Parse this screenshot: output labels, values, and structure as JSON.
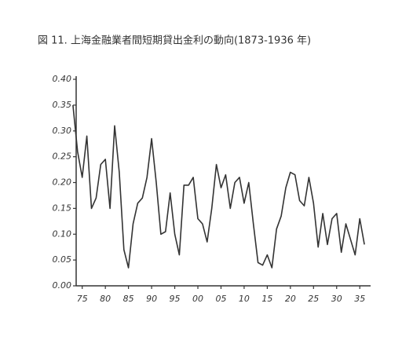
{
  "chart_data": {
    "type": "line",
    "title": "図 11. 上海金融業者間短期貸出金利の動向(1873-1936 年)",
    "x": [
      1873,
      1874,
      1875,
      1876,
      1877,
      1878,
      1879,
      1880,
      1881,
      1882,
      1883,
      1884,
      1885,
      1886,
      1887,
      1888,
      1889,
      1890,
      1891,
      1892,
      1893,
      1894,
      1895,
      1896,
      1897,
      1898,
      1899,
      1900,
      1901,
      1902,
      1903,
      1904,
      1905,
      1906,
      1907,
      1908,
      1909,
      1910,
      1911,
      1912,
      1913,
      1914,
      1915,
      1916,
      1917,
      1918,
      1919,
      1920,
      1921,
      1922,
      1923,
      1924,
      1925,
      1926,
      1927,
      1928,
      1929,
      1930,
      1931,
      1932,
      1933,
      1934,
      1935,
      1936
    ],
    "values": [
      0.35,
      0.26,
      0.21,
      0.29,
      0.15,
      0.17,
      0.235,
      0.245,
      0.15,
      0.31,
      0.22,
      0.07,
      0.035,
      0.12,
      0.16,
      0.17,
      0.21,
      0.285,
      0.2,
      0.1,
      0.105,
      0.18,
      0.1,
      0.06,
      0.195,
      0.195,
      0.21,
      0.13,
      0.12,
      0.085,
      0.15,
      0.235,
      0.19,
      0.215,
      0.15,
      0.2,
      0.21,
      0.16,
      0.2,
      0.12,
      0.045,
      0.04,
      0.06,
      0.035,
      0.11,
      0.135,
      0.19,
      0.22,
      0.215,
      0.165,
      0.155,
      0.21,
      0.16,
      0.075,
      0.14,
      0.08,
      0.13,
      0.14,
      0.065,
      0.12,
      0.09,
      0.06,
      0.13,
      0.08
    ],
    "color": "#333333",
    "xlim": [
      1872.5,
      1937
    ],
    "xticks": [
      {
        "value": 1875,
        "label": "75"
      },
      {
        "value": 1880,
        "label": "80"
      },
      {
        "value": 1885,
        "label": "85"
      },
      {
        "value": 1890,
        "label": "90"
      },
      {
        "value": 1895,
        "label": "95"
      },
      {
        "value": 1900,
        "label": "00"
      },
      {
        "value": 1905,
        "label": "05"
      },
      {
        "value": 1910,
        "label": "10"
      },
      {
        "value": 1915,
        "label": "15"
      },
      {
        "value": 1920,
        "label": "20"
      },
      {
        "value": 1925,
        "label": "25"
      },
      {
        "value": 1930,
        "label": "30"
      },
      {
        "value": 1935,
        "label": "35"
      }
    ],
    "ylim": [
      0,
      0.4
    ],
    "yticks": [
      {
        "value": 0,
        "label": "0.00"
      },
      0.05,
      {
        "value": 0.1,
        "label": "0.10"
      },
      0.15,
      {
        "value": 0.2,
        "label": "0.20"
      },
      0.25,
      {
        "value": 0.3,
        "label": "0.30"
      },
      0.35,
      {
        "value": 0.4,
        "label": "0.40"
      }
    ]
  }
}
